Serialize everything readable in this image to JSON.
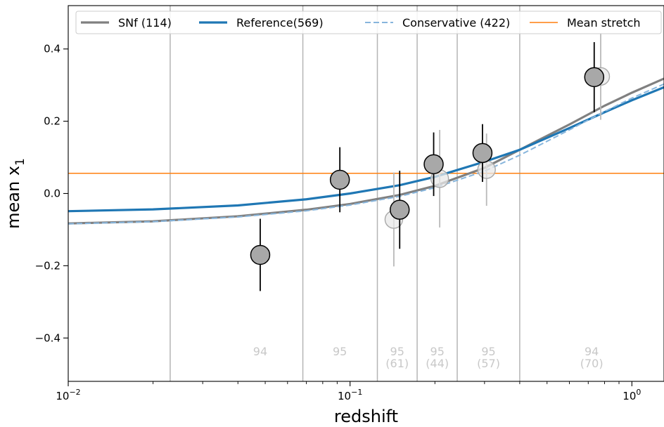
{
  "chart_data": {
    "type": "scatter",
    "xlabel": "redshift",
    "ylabel_main": "mean x",
    "ylabel_sub": "1",
    "x_scale": "log",
    "xlim": [
      0.01,
      1.3
    ],
    "ylim": [
      -0.52,
      0.52
    ],
    "x_ticks": [
      {
        "value": 0.01,
        "base": "10",
        "exp": "−2"
      },
      {
        "value": 0.1,
        "base": "10",
        "exp": "−1"
      },
      {
        "value": 1.0,
        "base": "10",
        "exp": "0"
      }
    ],
    "y_ticks": [
      {
        "value": 0.4,
        "label": "0.4"
      },
      {
        "value": 0.2,
        "label": "0.2"
      },
      {
        "value": 0.0,
        "label": "0.0"
      },
      {
        "value": -0.2,
        "label": "−0.2"
      },
      {
        "value": -0.4,
        "label": "−0.4"
      }
    ],
    "bin_edges": [
      0.023,
      0.068,
      0.125,
      0.173,
      0.24,
      0.4
    ],
    "bin_annotations": [
      {
        "z": 0.048,
        "count": "94",
        "sub": ""
      },
      {
        "z": 0.092,
        "count": "95",
        "sub": ""
      },
      {
        "z": 0.147,
        "count": "95",
        "sub": "(61)"
      },
      {
        "z": 0.204,
        "count": "95",
        "sub": "(44)"
      },
      {
        "z": 0.31,
        "count": "95",
        "sub": "(57)"
      },
      {
        "z": 0.72,
        "count": "94",
        "sub": "(70)"
      }
    ],
    "horizontal_line": {
      "y": 0.056,
      "label": "Mean stretch",
      "color": "#ff7f0e"
    },
    "series": [
      {
        "name": "SNf (114)",
        "style": "solid",
        "color": "#808080",
        "x": [
          0.01,
          0.02,
          0.04,
          0.07,
          0.1,
          0.15,
          0.2,
          0.3,
          0.4,
          0.6,
          0.8,
          1.0,
          1.3
        ],
        "y": [
          -0.083,
          -0.077,
          -0.063,
          -0.045,
          -0.029,
          -0.004,
          0.021,
          0.071,
          0.121,
          0.191,
          0.243,
          0.279,
          0.318
        ]
      },
      {
        "name": "Reference(569)",
        "style": "solid",
        "color": "#1f77b4",
        "x": [
          0.01,
          0.02,
          0.04,
          0.07,
          0.1,
          0.15,
          0.2,
          0.3,
          0.4,
          0.6,
          0.8,
          1.0,
          1.3
        ],
        "y": [
          -0.049,
          -0.044,
          -0.033,
          -0.016,
          0.0,
          0.023,
          0.046,
          0.088,
          0.121,
          0.181,
          0.225,
          0.258,
          0.294
        ]
      },
      {
        "name": "Conservative (422)",
        "style": "dashed",
        "color": "#87b5dc",
        "x": [
          0.01,
          0.02,
          0.04,
          0.07,
          0.1,
          0.15,
          0.2,
          0.3,
          0.4,
          0.6,
          0.8,
          1.0,
          1.3
        ],
        "y": [
          -0.084,
          -0.078,
          -0.065,
          -0.048,
          -0.032,
          -0.008,
          0.016,
          0.062,
          0.106,
          0.176,
          0.227,
          0.264,
          0.303
        ]
      }
    ],
    "points_main": [
      {
        "x": 0.048,
        "y": -0.17,
        "err": 0.1
      },
      {
        "x": 0.092,
        "y": 0.038,
        "err": 0.09
      },
      {
        "x": 0.15,
        "y": -0.045,
        "err": 0.108
      },
      {
        "x": 0.198,
        "y": 0.081,
        "err": 0.088
      },
      {
        "x": 0.295,
        "y": 0.112,
        "err": 0.08
      },
      {
        "x": 0.735,
        "y": 0.322,
        "err": 0.097
      }
    ],
    "points_faded": [
      {
        "x": 0.143,
        "y": -0.072,
        "err": 0.13
      },
      {
        "x": 0.208,
        "y": 0.041,
        "err": 0.135
      },
      {
        "x": 0.305,
        "y": 0.066,
        "err": 0.1
      },
      {
        "x": 0.775,
        "y": 0.324,
        "err": 0.12
      }
    ]
  }
}
